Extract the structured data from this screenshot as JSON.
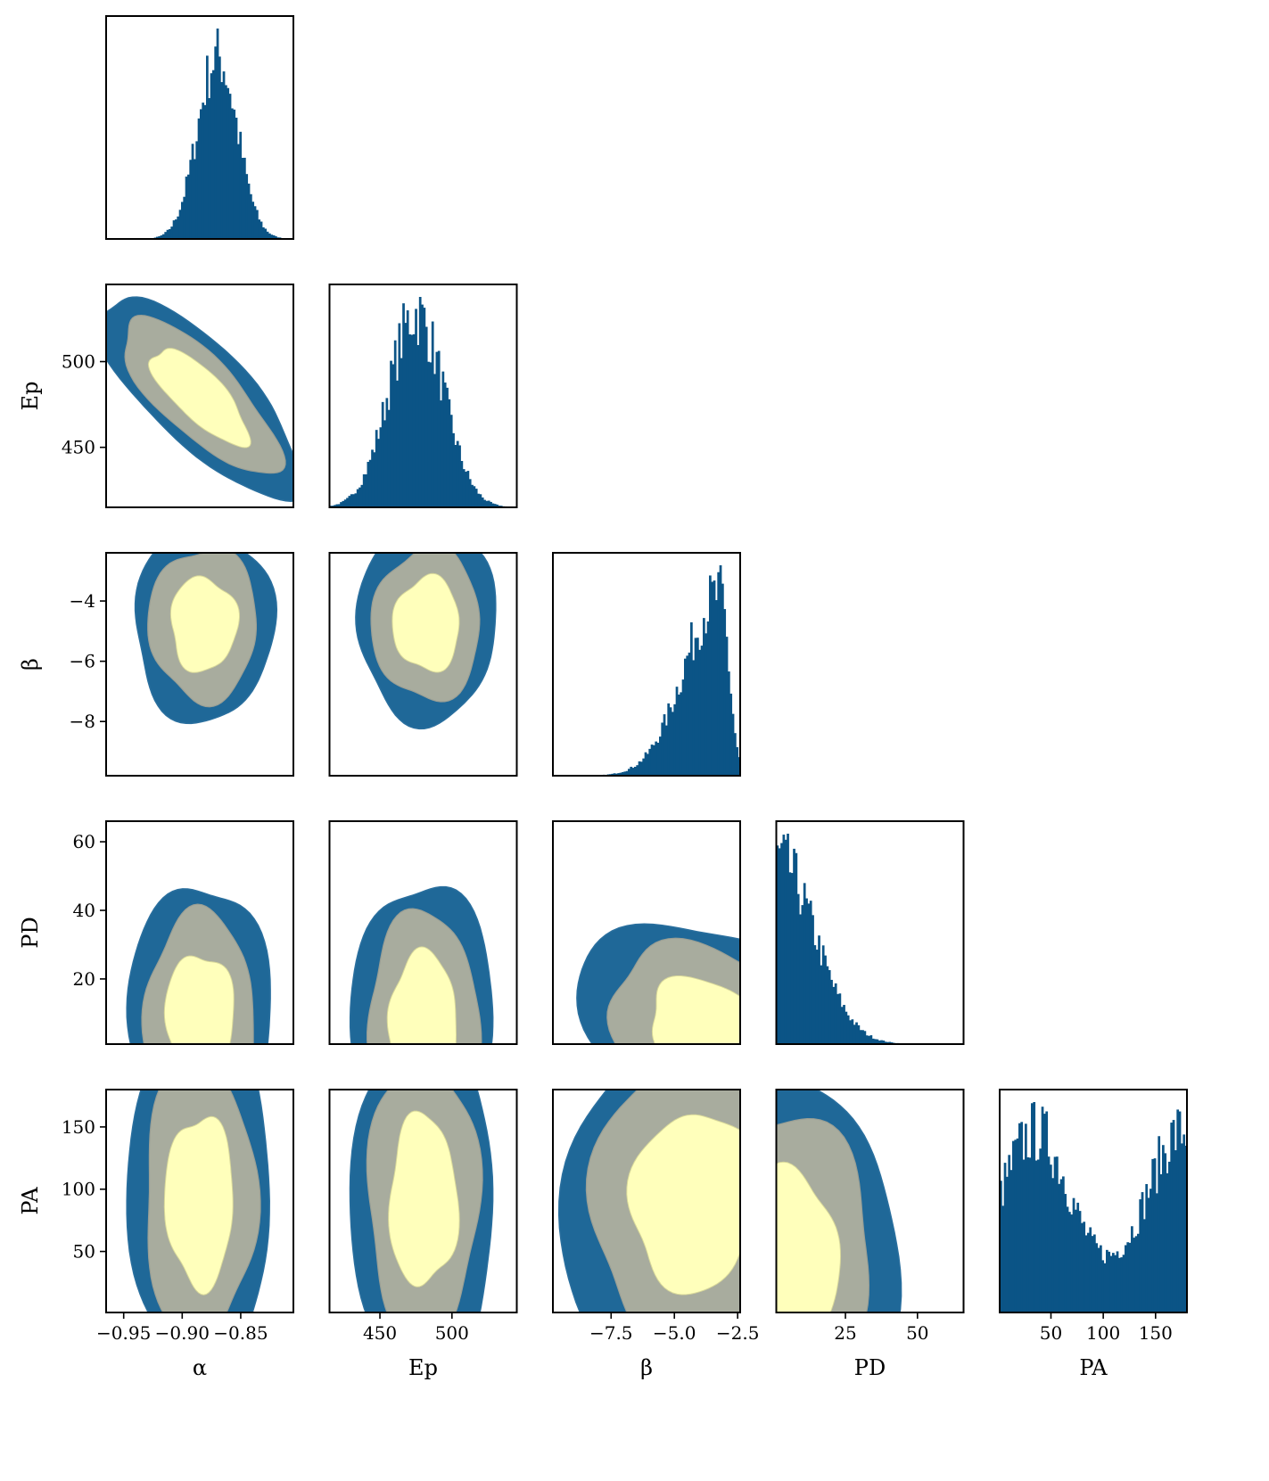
{
  "chart_data": {
    "type": "corner",
    "parameters": [
      {
        "key": "alpha",
        "label": "α",
        "range": [
          -0.965,
          -0.805
        ],
        "ticks": [
          -0.95,
          -0.9,
          -0.85
        ],
        "tick_labels": [
          "−0.95",
          "−0.90",
          "−0.85"
        ]
      },
      {
        "key": "Ep",
        "label": "Ep",
        "range": [
          415,
          545
        ],
        "ticks": [
          450,
          500
        ],
        "tick_labels": [
          "450",
          "500"
        ]
      },
      {
        "key": "beta",
        "label": "β",
        "range": [
          -9.8,
          -2.4
        ],
        "ticks": [
          -7.5,
          -5.0,
          -2.5
        ],
        "tick_labels": [
          "−7.5",
          "−5.0",
          "−2.5"
        ],
        "y_ticks": [
          -8,
          -6,
          -4
        ],
        "y_tick_labels": [
          "−8",
          "−6",
          "−4"
        ]
      },
      {
        "key": "PD",
        "label": "PD",
        "range": [
          1,
          66
        ],
        "ticks": [
          25,
          50
        ],
        "tick_labels": [
          "25",
          "50"
        ],
        "y_ticks": [
          20,
          40,
          60
        ],
        "y_tick_labels": [
          "20",
          "40",
          "60"
        ]
      },
      {
        "key": "PA",
        "label": "PA",
        "range": [
          1,
          180
        ],
        "ticks": [
          50,
          100,
          150
        ],
        "tick_labels": [
          "50",
          "100",
          "150"
        ],
        "y_ticks": [
          50,
          100,
          150
        ],
        "y_tick_labels": [
          "50",
          "100",
          "150"
        ]
      }
    ],
    "marginals": [
      {
        "param": "alpha",
        "shape": "gaussian",
        "center": -0.87,
        "sigma": 0.017
      },
      {
        "param": "Ep",
        "shape": "gaussian",
        "center": 475,
        "sigma": 19
      },
      {
        "param": "beta",
        "shape": "left-skewed",
        "center": -3.2,
        "sigma_left": 1.4,
        "sigma_right": 0.35
      },
      {
        "param": "PD",
        "shape": "half-gaussian",
        "center": 1,
        "sigma": 13
      },
      {
        "param": "PA",
        "shape": "bimodal",
        "modes": [
          35,
          175
        ],
        "sigma": 32,
        "floor": 0.2
      }
    ],
    "contour_levels": [
      "outer",
      "middle",
      "inner"
    ],
    "colors": {
      "histogram": "#0b5486",
      "outer": "#1f6898",
      "middle": "#a8ac9e",
      "inner": "#ffffbb",
      "edge": "#2a6f9e"
    },
    "grid": false,
    "legend": "none"
  }
}
